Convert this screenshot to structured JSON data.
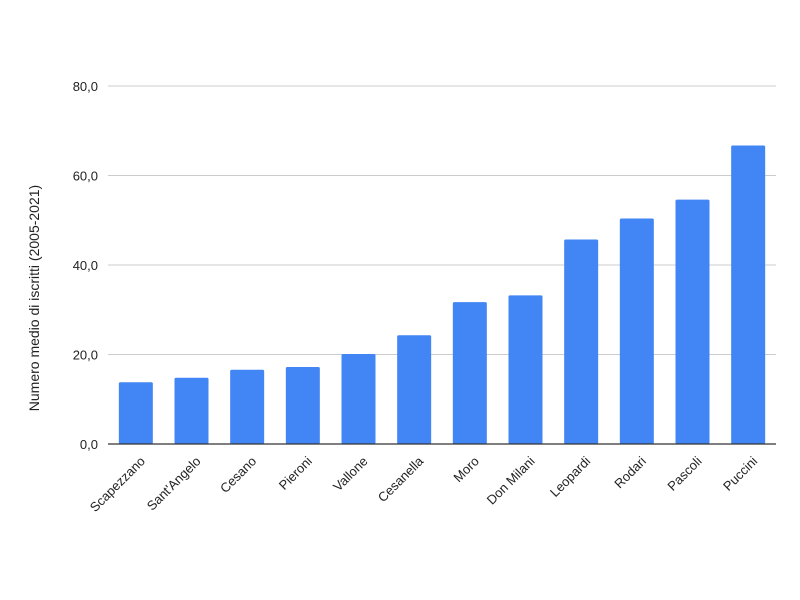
{
  "chart_data": {
    "type": "bar",
    "title": "",
    "xlabel": "",
    "ylabel": "Numero medio di iscritti (2005-2021)",
    "categories": [
      "Scapezzano",
      "Sant'Angelo",
      "Cesano",
      "Pieroni",
      "Vallone",
      "Cesanella",
      "Moro",
      "Don Milani",
      "Leopardi",
      "Rodari",
      "Pascoli",
      "Puccini"
    ],
    "values": [
      13.8,
      14.8,
      16.6,
      17.2,
      20.1,
      24.3,
      31.7,
      33.2,
      45.7,
      50.4,
      54.6,
      66.7
    ],
    "ylim": [
      0,
      80
    ],
    "yticks": [
      0,
      20,
      40,
      60,
      80
    ],
    "ytick_labels": [
      "0,0",
      "20,0",
      "40,0",
      "60,0",
      "80,0"
    ],
    "grid": true,
    "legend": "none",
    "colors": {
      "bar": "#4285f4",
      "grid": "#cccccc",
      "axis": "#333333"
    }
  }
}
